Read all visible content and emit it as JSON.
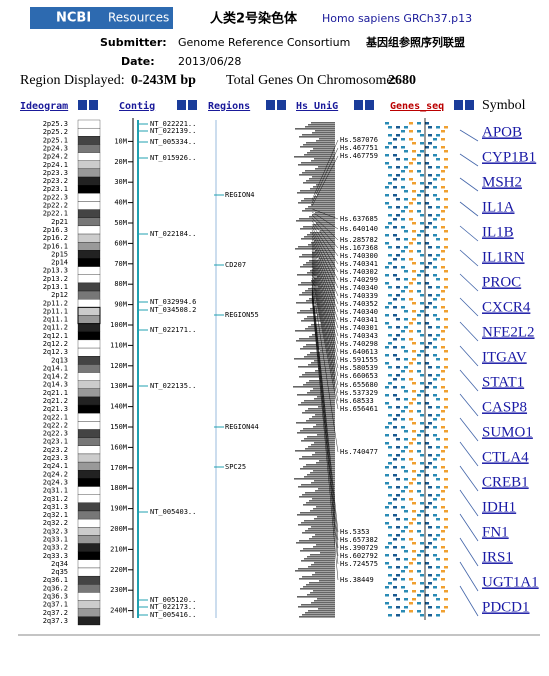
{
  "header": {
    "logo": "NCBI",
    "resources": "Resources",
    "title": "人类2号染色体",
    "organism": "Homo sapiens GRCh37.p13"
  },
  "info": {
    "submitter_label": "Submitter:",
    "submitter": "Genome Reference Consortium",
    "submitter_cn": "基因组参照序列联盟",
    "date_label": "Date:",
    "date": "2013/06/28",
    "region_label": "Region Displayed:",
    "region": "0-243M bp",
    "total_label": "Total Genes On Chromosome:",
    "total": "2680"
  },
  "columns": [
    "Ideogram",
    "Contig",
    "Regions",
    "Hs UniG",
    "Genes_seq",
    "Symbol"
  ],
  "scale_ticks": [
    {
      "value": 10,
      "label": "10M"
    },
    {
      "value": 20,
      "label": "20M"
    },
    {
      "value": 30,
      "label": "30M"
    },
    {
      "value": 40,
      "label": "40M"
    },
    {
      "value": 50,
      "label": "50M"
    },
    {
      "value": 60,
      "label": "60M"
    },
    {
      "value": 70,
      "label": "70M"
    },
    {
      "value": 80,
      "label": "80M"
    },
    {
      "value": 90,
      "label": "90M"
    },
    {
      "value": 100,
      "label": "100M"
    },
    {
      "value": 110,
      "label": "110M"
    },
    {
      "value": 120,
      "label": "120M"
    },
    {
      "value": 130,
      "label": "130M"
    },
    {
      "value": 140,
      "label": "140M"
    },
    {
      "value": 150,
      "label": "150M"
    },
    {
      "value": 160,
      "label": "160M"
    },
    {
      "value": 170,
      "label": "170M"
    },
    {
      "value": 180,
      "label": "180M"
    },
    {
      "value": 190,
      "label": "190M"
    },
    {
      "value": 200,
      "label": "200M"
    },
    {
      "value": 210,
      "label": "210M"
    },
    {
      "value": 220,
      "label": "220M"
    },
    {
      "value": 230,
      "label": "230M"
    },
    {
      "value": 240,
      "label": "240M"
    }
  ],
  "bands": [
    "2p25.3",
    "2p25.2",
    "2p25.1",
    "2p24.3",
    "2p24.2",
    "2p24.1",
    "2p23.3",
    "2p23.2",
    "2p23.1",
    "2p22.3",
    "2p22.2",
    "2p22.1",
    "2p21",
    "2p16.3",
    "2p16.2",
    "2p16.1",
    "2p15",
    "2p14",
    "2p13.3",
    "2p13.2",
    "2p13.1",
    "2p12",
    "2p11.2",
    "2p11.1",
    "2q11.1",
    "2q11.2",
    "2q12.1",
    "2q12.2",
    "2q12.3",
    "2q13",
    "2q14.1",
    "2q14.2",
    "2q14.3",
    "2q21.1",
    "2q21.2",
    "2q21.3",
    "2q22.1",
    "2q22.2",
    "2q22.3",
    "2q23.1",
    "2q23.2",
    "2q23.3",
    "2q24.1",
    "2q24.2",
    "2q24.3",
    "2q31.1",
    "2q31.2",
    "2q31.3",
    "2q32.1",
    "2q32.2",
    "2q32.3",
    "2q33.1",
    "2q33.2",
    "2q33.3",
    "2q34",
    "2q35",
    "2q36.1",
    "2q36.2",
    "2q36.3",
    "2q37.1",
    "2q37.2",
    "2q37.3"
  ],
  "contigs": [
    "NT_022221..",
    "NT_022139..",
    "NT_005334..",
    "NT_015926..",
    "NT_022184..",
    "NT_032994.6",
    "NT_034508.2",
    "NT_022171..",
    "NT_022135..",
    "NT_005403..",
    "NT_005120..",
    "NT_022173..",
    "NT_005416.."
  ],
  "regions": [
    "REGION4",
    "CD207",
    "REGION55",
    "REGION44",
    "SPC25"
  ],
  "unigene": [
    "Hs.587076",
    "Hs.467751",
    "Hs.467759",
    "Hs.637685",
    "Hs.640140",
    "Hs.285782",
    "Hs.167368",
    "Hs.740300",
    "Hs.740341",
    "Hs.740302",
    "Hs.740299",
    "Hs.740340",
    "Hs.740339",
    "Hs.740352",
    "Hs.740340",
    "Hs.740341",
    "Hs.740301",
    "Hs.740343",
    "Hs.740298",
    "Hs.640613",
    "Hs.591555",
    "Hs.580539",
    "Hs.660653",
    "Hs.655680",
    "Hs.537329",
    "Hs.68533",
    "Hs.656461",
    "Hs.740477",
    "Hs.5353",
    "Hs.657382",
    "Hs.390729",
    "Hs.602792",
    "Hs.724575",
    "Hs.38449"
  ],
  "symbols": [
    "APOB",
    "CYP1B1",
    "MSH2",
    "IL1A",
    "IL1B",
    "IL1RN",
    "PROC",
    "CXCR4",
    "NFE2L2",
    "ITGAV",
    "STAT1",
    "CASP8",
    "SUMO1",
    "CTLA4",
    "CREB1",
    "IDH1",
    "FN1",
    "IRS1",
    "UGT1A1",
    "PDCD1"
  ]
}
